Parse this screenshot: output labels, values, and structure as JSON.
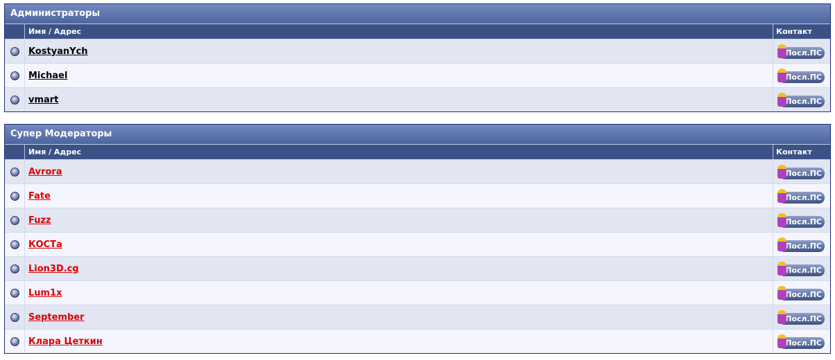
{
  "columns": {
    "name": "Имя / Адрес",
    "contact": "Контакт"
  },
  "pm_label": "Посл.ПС",
  "groups": [
    {
      "title": "Администраторы",
      "kind": "admin",
      "members": [
        "KostyanYch",
        "Michael",
        "vmart"
      ]
    },
    {
      "title": "Супер Модераторы",
      "kind": "smod",
      "members": [
        "Avrora",
        "Fate",
        "Fuzz",
        "КОСТа",
        "Lion3D.cg",
        "Lum1x",
        "September",
        "Клара Цеткин"
      ]
    }
  ],
  "colors": {
    "admin_link": "#000000",
    "moderator_link": "#dd0000",
    "header": "#3c5186"
  }
}
